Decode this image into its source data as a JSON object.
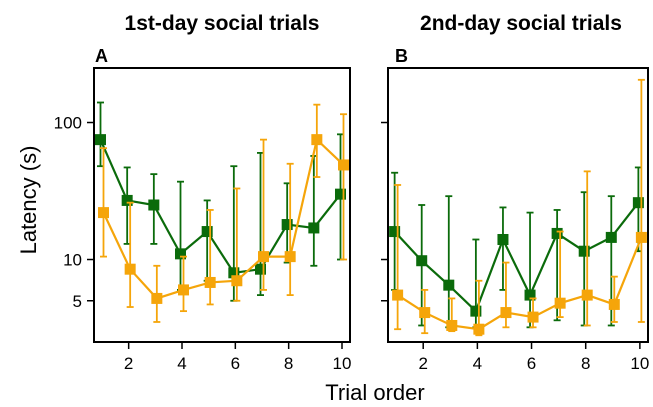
{
  "figure": {
    "ylabel": "Latency (s)",
    "xlabel": "Trial order"
  },
  "colors": {
    "green": "#0b6b0b",
    "orange": "#f5a50a",
    "axis": "#000000"
  },
  "chart_data": [
    {
      "type": "line",
      "panel_letter": "A",
      "title": "1st-day social trials",
      "xlabel": "Trial order",
      "ylabel": "Latency (s)",
      "y_scale": "log",
      "xlim": [
        0.7,
        10.3
      ],
      "ylim": [
        2.5,
        250
      ],
      "x_ticks": [
        2,
        4,
        6,
        8,
        10
      ],
      "y_ticks": [
        5,
        10,
        100
      ],
      "x": [
        1,
        2,
        3,
        4,
        5,
        6,
        7,
        8,
        9,
        10
      ],
      "series": [
        {
          "color": "green",
          "marker": "square",
          "values": [
            75,
            27,
            25,
            11,
            16,
            8,
            8.5,
            18,
            17,
            30
          ],
          "upper": [
            140,
            47,
            42,
            37,
            27,
            48,
            60,
            36,
            57,
            82
          ],
          "lower": [
            48,
            13,
            13,
            6,
            7,
            5,
            5.5,
            9.5,
            9,
            10
          ]
        },
        {
          "color": "orange",
          "marker": "square",
          "values": [
            22,
            8.5,
            5.2,
            6,
            6.8,
            7,
            10.5,
            10.5,
            75,
            49
          ],
          "upper": [
            65,
            26,
            9,
            10.5,
            23,
            33,
            75,
            50,
            135,
            115
          ],
          "lower": [
            10.5,
            4.5,
            3.5,
            4.2,
            4.7,
            5,
            6,
            5.5,
            40,
            10
          ]
        }
      ]
    },
    {
      "type": "line",
      "panel_letter": "B",
      "title": "2nd-day social trials",
      "xlabel": "Trial order",
      "ylabel": "",
      "y_scale": "log",
      "xlim": [
        0.7,
        10.3
      ],
      "ylim": [
        2.5,
        250
      ],
      "x_ticks": [
        2,
        4,
        6,
        8,
        10
      ],
      "y_ticks": [
        5,
        10,
        100
      ],
      "x": [
        1,
        2,
        3,
        4,
        5,
        6,
        7,
        8,
        9,
        10
      ],
      "series": [
        {
          "color": "green",
          "marker": "square",
          "values": [
            16,
            9.8,
            6.5,
            4.2,
            14,
            5.5,
            15.5,
            11.5,
            14.5,
            26
          ],
          "upper": [
            43,
            25,
            29,
            14,
            24,
            22,
            23,
            31,
            29,
            47
          ],
          "lower": [
            6,
            3.3,
            3.2,
            3.2,
            6,
            3.2,
            3.6,
            3.3,
            3.3,
            11.5
          ]
        },
        {
          "color": "orange",
          "marker": "square",
          "values": [
            5.5,
            4.1,
            3.3,
            3.1,
            4.1,
            3.8,
            4.8,
            5.5,
            4.7,
            14.5
          ],
          "upper": [
            35,
            6,
            5.2,
            7,
            9.5,
            5.2,
            16,
            44,
            7.5,
            205
          ],
          "lower": [
            3.1,
            2.9,
            3.0,
            2.8,
            3.2,
            3.2,
            3.8,
            3.3,
            3.5,
            3.5
          ]
        }
      ]
    }
  ]
}
